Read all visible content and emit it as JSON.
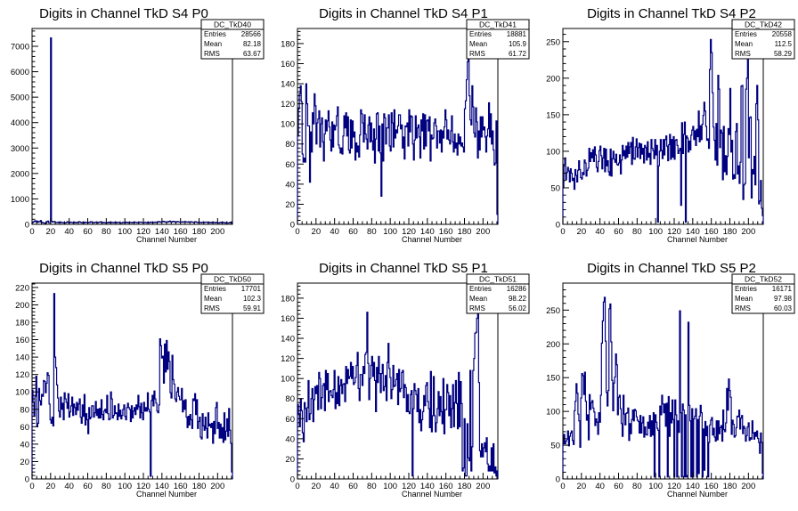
{
  "chart_data": [
    {
      "type": "histogram",
      "title": "Digits in Channel TkD S4 P0",
      "xlabel": "Channel Number",
      "xlim": [
        0,
        216
      ],
      "ylim": [
        0,
        7700
      ],
      "xticks": [
        0,
        20,
        40,
        60,
        80,
        100,
        120,
        140,
        160,
        180,
        200
      ],
      "yticks": [
        0,
        1000,
        2000,
        3000,
        4000,
        5000,
        6000,
        7000
      ],
      "stats": {
        "name": "DC_TkD40",
        "entries": "28566",
        "mean": "82.18",
        "rms": "63.67"
      },
      "values": [
        60,
        90,
        120,
        140,
        100,
        130,
        80,
        110,
        100,
        150,
        90,
        70,
        60,
        50,
        40,
        60,
        110,
        130,
        60,
        60,
        7330,
        120,
        90,
        100,
        110,
        80,
        70,
        70,
        90,
        60,
        80,
        90,
        70,
        60,
        70,
        50,
        60,
        80,
        100,
        70,
        60,
        90,
        80,
        70,
        60,
        90,
        70,
        60,
        80,
        70,
        90,
        100,
        80,
        60,
        70,
        80,
        50,
        90,
        80,
        70,
        60,
        80,
        70,
        100,
        90,
        80,
        70,
        60,
        80,
        90,
        70,
        60,
        80,
        90,
        100,
        70,
        60,
        80,
        70,
        60,
        50,
        70,
        80,
        60,
        90,
        70,
        80,
        70,
        60,
        80,
        90,
        60,
        70,
        80,
        70,
        60,
        50,
        60,
        80,
        70,
        60,
        90,
        70,
        80,
        60,
        70,
        80,
        70,
        60,
        80,
        70,
        90,
        80,
        70,
        60,
        70,
        80,
        90,
        80,
        70,
        60,
        70,
        80,
        70,
        60,
        80,
        70,
        60,
        90,
        80,
        70,
        60,
        80,
        90,
        70,
        80,
        100,
        110,
        90,
        80,
        100,
        110,
        120,
        100,
        90,
        80,
        100,
        90,
        110,
        130,
        100,
        90,
        110,
        120,
        100,
        80,
        90,
        110,
        100,
        90,
        80,
        90,
        100,
        80,
        90,
        110,
        100,
        90,
        80,
        100,
        90,
        80,
        100,
        90,
        80,
        70,
        90,
        100,
        80,
        70,
        90,
        80,
        70,
        60,
        80,
        90,
        70,
        80,
        90,
        80,
        70,
        60,
        80,
        70,
        60,
        90,
        80,
        70,
        60,
        80,
        70,
        60,
        50,
        70,
        80,
        60,
        70,
        80,
        60,
        50,
        70,
        60,
        50,
        60,
        80,
        60,
        30
      ]
    },
    {
      "type": "histogram",
      "title": "Digits in Channel TkD S4 P1",
      "xlabel": "Channel Number",
      "xlim": [
        0,
        216
      ],
      "ylim": [
        0,
        195
      ],
      "xticks": [
        0,
        20,
        40,
        60,
        80,
        100,
        120,
        140,
        160,
        180,
        200
      ],
      "yticks": [
        0,
        20,
        40,
        60,
        80,
        100,
        120,
        140,
        160,
        180
      ],
      "stats": {
        "name": "DC_TkD41",
        "entries": "18881",
        "mean": "105.9",
        "rms": "61.72"
      },
      "values": [
        88,
        115,
        130,
        138,
        122,
        70,
        62,
        66,
        62,
        140,
        120,
        98,
        98,
        42,
        92,
        72,
        111,
        100,
        130,
        118,
        80,
        101,
        105,
        113,
        77,
        100,
        106,
        82,
        63,
        90,
        104,
        93,
        103,
        113,
        97,
        84,
        73,
        102,
        77,
        99,
        94,
        98,
        108,
        117,
        79,
        76,
        71,
        76,
        70,
        88,
        108,
        96,
        111,
        88,
        107,
        74,
        71,
        104,
        76,
        103,
        87,
        92,
        64,
        81,
        72,
        78,
        67,
        89,
        114,
        110,
        101,
        82,
        109,
        90,
        85,
        75,
        99,
        107,
        82,
        101,
        83,
        74,
        95,
        61,
        85,
        110,
        111,
        73,
        98,
        71,
        28,
        100,
        63,
        110,
        106,
        80,
        96,
        96,
        109,
        78,
        73,
        111,
        101,
        77,
        114,
        86,
        94,
        91,
        98,
        109,
        109,
        95,
        99,
        76,
        87,
        65,
        98,
        97,
        101,
        78,
        114,
        92,
        108,
        107,
        80,
        64,
        84,
        108,
        86,
        96,
        99,
        87,
        66,
        104,
        93,
        110,
        75,
        109,
        78,
        103,
        104,
        93,
        107,
        63,
        89,
        85,
        86,
        101,
        105,
        98,
        76,
        93,
        93,
        81,
        94,
        72,
        93,
        86,
        97,
        114,
        104,
        85,
        94,
        84,
        80,
        93,
        108,
        82,
        72,
        90,
        76,
        81,
        69,
        90,
        80,
        87,
        78,
        81,
        77,
        72,
        115,
        123,
        144,
        162,
        185,
        128,
        104,
        99,
        138,
        117,
        91,
        87,
        116,
        102,
        66,
        93,
        74,
        107,
        87,
        107,
        94,
        97,
        87,
        72,
        88,
        95,
        121,
        87,
        110,
        80,
        93,
        74,
        59,
        61,
        103,
        10
      ]
    },
    {
      "type": "histogram",
      "title": "Digits in Channel TkD S4 P2",
      "xlabel": "Channel Number",
      "xlim": [
        0,
        216
      ],
      "ylim": [
        0,
        268
      ],
      "xticks": [
        0,
        20,
        40,
        60,
        80,
        100,
        120,
        140,
        160,
        180,
        200
      ],
      "yticks": [
        0,
        50,
        100,
        150,
        200,
        250
      ],
      "stats": {
        "name": "DC_TkD42",
        "entries": "20558",
        "mean": "112.5",
        "rms": "58.29"
      },
      "values": [
        50,
        82,
        91,
        61,
        71,
        78,
        73,
        58,
        76,
        70,
        60,
        63,
        48,
        75,
        67,
        58,
        74,
        87,
        75,
        64,
        62,
        71,
        68,
        88,
        84,
        66,
        74,
        77,
        104,
        86,
        98,
        91,
        102,
        86,
        106,
        95,
        78,
        72,
        86,
        101,
        107,
        94,
        76,
        91,
        104,
        72,
        103,
        80,
        87,
        72,
        67,
        103,
        66,
        90,
        100,
        89,
        85,
        96,
        82,
        81,
        84,
        95,
        69,
        88,
        108,
        94,
        101,
        90,
        107,
        92,
        112,
        97,
        106,
        112,
        82,
        119,
        90,
        89,
        106,
        117,
        92,
        105,
        111,
        90,
        110,
        96,
        104,
        84,
        108,
        105,
        88,
        113,
        92,
        97,
        82,
        116,
        104,
        101,
        90,
        116,
        95,
        108,
        3,
        80,
        100,
        116,
        101,
        90,
        116,
        95,
        116,
        121,
        107,
        87,
        109,
        123,
        89,
        116,
        92,
        120,
        89,
        115,
        116,
        108,
        97,
        101,
        104,
        26,
        139,
        97,
        123,
        140,
        3,
        121,
        118,
        99,
        114,
        102,
        122,
        129,
        134,
        116,
        128,
        108,
        130,
        120,
        155,
        113,
        135,
        116,
        137,
        149,
        167,
        155,
        134,
        115,
        117,
        104,
        212,
        253,
        235,
        180,
        133,
        115,
        88,
        138,
        81,
        204,
        185,
        105,
        129,
        125,
        61,
        134,
        72,
        94,
        68,
        93,
        131,
        123,
        186,
        99,
        115,
        62,
        68,
        63,
        127,
        138,
        69,
        80,
        56,
        85,
        189,
        190,
        34,
        54,
        56,
        185,
        200,
        230,
        91,
        146,
        147,
        36,
        75,
        69,
        93,
        54,
        165,
        190,
        143,
        28,
        32,
        60,
        22,
        12
      ]
    },
    {
      "type": "histogram",
      "title": "Digits in Channel TkD S5 P0",
      "xlabel": "Channel Number",
      "xlim": [
        0,
        216
      ],
      "ylim": [
        0,
        225
      ],
      "xticks": [
        0,
        20,
        40,
        60,
        80,
        100,
        120,
        140,
        160,
        180,
        200
      ],
      "yticks": [
        0,
        20,
        40,
        60,
        80,
        100,
        120,
        140,
        160,
        180,
        200,
        220
      ],
      "stats": {
        "name": "DC_TkD50",
        "entries": "17701",
        "mean": "102.3",
        "rms": "59.91"
      },
      "values": [
        102,
        88,
        72,
        95,
        118,
        60,
        64,
        104,
        90,
        85,
        97,
        95,
        113,
        112,
        99,
        110,
        122,
        119,
        86,
        68,
        64,
        71,
        61,
        213,
        140,
        128,
        108,
        93,
        78,
        71,
        94,
        80,
        87,
        68,
        99,
        92,
        88,
        81,
        98,
        71,
        77,
        84,
        94,
        73,
        86,
        82,
        74,
        88,
        79,
        86,
        92,
        71,
        64,
        85,
        72,
        97,
        62,
        75,
        68,
        52,
        82,
        69,
        71,
        84,
        84,
        71,
        76,
        89,
        73,
        80,
        70,
        81,
        70,
        91,
        74,
        68,
        78,
        80,
        76,
        96,
        75,
        68,
        69,
        100,
        92,
        70,
        73,
        84,
        75,
        76,
        68,
        86,
        72,
        79,
        69,
        73,
        80,
        85,
        72,
        68,
        82,
        87,
        82,
        80,
        66,
        84,
        70,
        78,
        82,
        74,
        85,
        80,
        96,
        83,
        70,
        87,
        76,
        68,
        88,
        78,
        82,
        78,
        99,
        80,
        77,
        3,
        90,
        96,
        84,
        101,
        92,
        87,
        78,
        76,
        85,
        161,
        153,
        139,
        141,
        110,
        155,
        123,
        159,
        126,
        146,
        135,
        99,
        93,
        142,
        114,
        109,
        92,
        89,
        100,
        105,
        95,
        91,
        91,
        104,
        77,
        90,
        80,
        91,
        71,
        59,
        72,
        62,
        74,
        68,
        58,
        92,
        90,
        98,
        74,
        91,
        58,
        66,
        71,
        48,
        46,
        75,
        61,
        56,
        71,
        58,
        47,
        76,
        61,
        63,
        59,
        64,
        41,
        66,
        52,
        82,
        88,
        58,
        65,
        47,
        63,
        47,
        59,
        42,
        76,
        45,
        55,
        69,
        49,
        81,
        56,
        41,
        8
      ]
    },
    {
      "type": "histogram",
      "title": "Digits in Channel TkD S5 P1",
      "xlabel": "Channel Number",
      "xlim": [
        0,
        216
      ],
      "ylim": [
        0,
        195
      ],
      "xticks": [
        0,
        20,
        40,
        60,
        80,
        100,
        120,
        140,
        160,
        180,
        200
      ],
      "yticks": [
        0,
        20,
        40,
        60,
        80,
        100,
        120,
        140,
        160,
        180
      ],
      "stats": {
        "name": "DC_TkD51",
        "entries": "16286",
        "mean": "98.22",
        "rms": "56.02"
      },
      "values": [
        74,
        65,
        52,
        80,
        68,
        46,
        37,
        76,
        70,
        57,
        71,
        98,
        59,
        65,
        80,
        90,
        57,
        79,
        92,
        85,
        93,
        69,
        106,
        100,
        70,
        81,
        93,
        95,
        68,
        108,
        89,
        105,
        77,
        87,
        88,
        83,
        81,
        89,
        108,
        70,
        86,
        75,
        102,
        73,
        93,
        99,
        85,
        94,
        95,
        77,
        112,
        95,
        109,
        100,
        102,
        116,
        100,
        112,
        94,
        96,
        101,
        113,
        126,
        90,
        78,
        104,
        104,
        93,
        112,
        105,
        124,
        126,
        166,
        115,
        79,
        100,
        113,
        122,
        102,
        116,
        98,
        67,
        111,
        96,
        122,
        105,
        86,
        105,
        114,
        88,
        92,
        103,
        78,
        116,
        135,
        110,
        101,
        80,
        89,
        113,
        92,
        93,
        99,
        105,
        74,
        109,
        87,
        90,
        106,
        108,
        81,
        94,
        91,
        67,
        84,
        67,
        65,
        84,
        88,
        3,
        70,
        95,
        88,
        84,
        67,
        90,
        56,
        69,
        48,
        59,
        67,
        83,
        73,
        93,
        96,
        77,
        70,
        51,
        107,
        47,
        63,
        102,
        63,
        47,
        56,
        70,
        87,
        63,
        82,
        67,
        55,
        100,
        45,
        69,
        69,
        94,
        86,
        63,
        83,
        51,
        70,
        94,
        52,
        76,
        98,
        75,
        50,
        106,
        52,
        97,
        75,
        8,
        11,
        60,
        3,
        3,
        55,
        21,
        18,
        108,
        8,
        32,
        108,
        120,
        145,
        146,
        160,
        170,
        96,
        28,
        22,
        35,
        22,
        31,
        36,
        27,
        41,
        15,
        8,
        13,
        8,
        31,
        8,
        35,
        6,
        12,
        3,
        8
      ]
    },
    {
      "type": "histogram",
      "title": "Digits in Channel TkD S5 P2",
      "xlabel": "Channel Number",
      "xlim": [
        0,
        216
      ],
      "ylim": [
        0,
        290
      ],
      "xticks": [
        0,
        20,
        40,
        60,
        80,
        100,
        120,
        140,
        160,
        180,
        200
      ],
      "yticks": [
        0,
        50,
        100,
        150,
        200,
        250
      ],
      "stats": {
        "name": "DC_TkD52",
        "entries": "16171",
        "mean": "97.98",
        "rms": "60.03"
      },
      "values": [
        52,
        66,
        52,
        56,
        59,
        71,
        49,
        63,
        68,
        71,
        57,
        51,
        101,
        115,
        141,
        127,
        96,
        86,
        47,
        120,
        156,
        153,
        125,
        158,
        115,
        87,
        95,
        58,
        125,
        103,
        113,
        116,
        105,
        99,
        79,
        89,
        84,
        66,
        98,
        84,
        124,
        201,
        234,
        262,
        269,
        204,
        128,
        108,
        131,
        252,
        259,
        203,
        146,
        101,
        142,
        151,
        185,
        169,
        95,
        121,
        124,
        104,
        82,
        63,
        124,
        96,
        80,
        97,
        98,
        105,
        57,
        82,
        67,
        88,
        102,
        86,
        103,
        101,
        92,
        87,
        85,
        68,
        94,
        68,
        83,
        92,
        62,
        77,
        66,
        65,
        84,
        75,
        94,
        63,
        86,
        65,
        98,
        3,
        95,
        84,
        75,
        72,
        3,
        108,
        95,
        124,
        111,
        98,
        111,
        78,
        112,
        3,
        122,
        63,
        98,
        83,
        117,
        88,
        3,
        117,
        95,
        3,
        86,
        69,
        249,
        98,
        3,
        111,
        102,
        3,
        95,
        3,
        5,
        232,
        109,
        86,
        3,
        104,
        3,
        89,
        93,
        104,
        3,
        88,
        8,
        93,
        109,
        98,
        3,
        74,
        13,
        85,
        64,
        78,
        3,
        54,
        80,
        87,
        91,
        65,
        75,
        62,
        56,
        86,
        58,
        86,
        67,
        76,
        79,
        56,
        102,
        73,
        70,
        83,
        134,
        102,
        148,
        131,
        121,
        66,
        87,
        81,
        62,
        64,
        76,
        93,
        92,
        102,
        74,
        90,
        94,
        67,
        78,
        75,
        56,
        64,
        77,
        83,
        57,
        61,
        59,
        86,
        68,
        59,
        69,
        63,
        71,
        60,
        54,
        38,
        68,
        54,
        8
      ]
    }
  ]
}
